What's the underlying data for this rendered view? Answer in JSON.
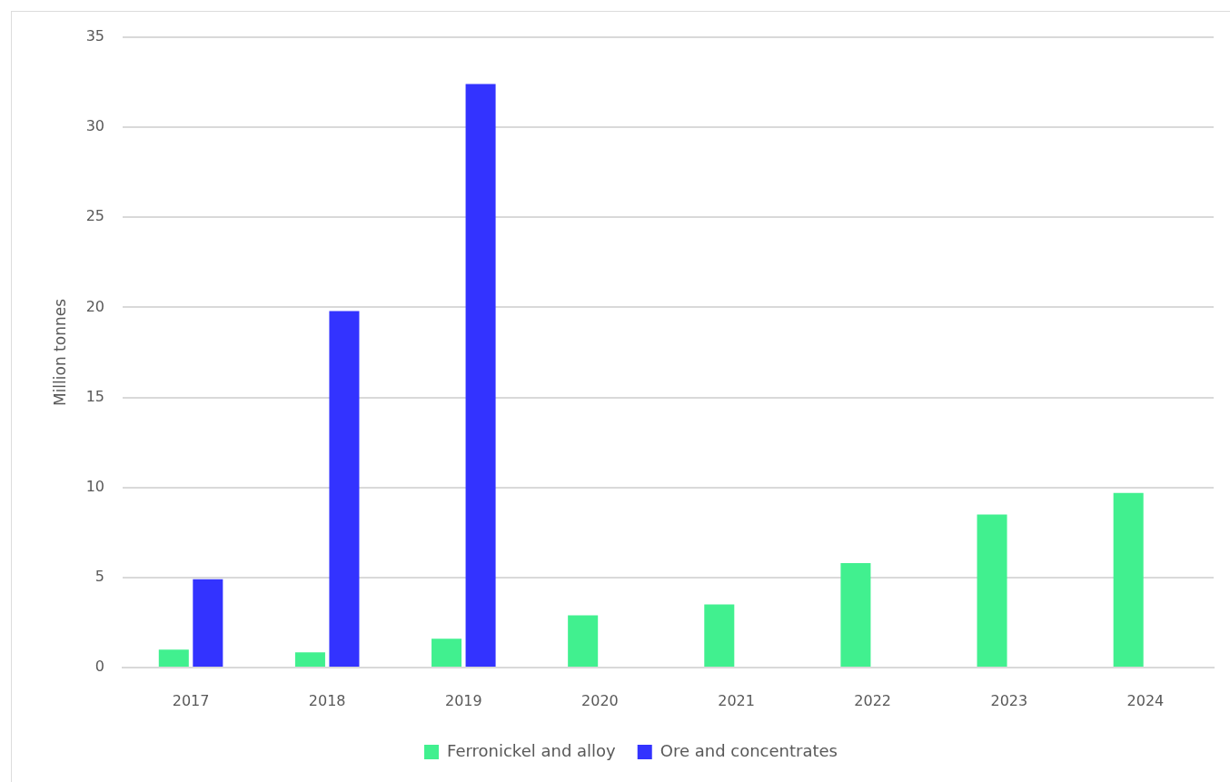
{
  "chart_data": {
    "type": "bar",
    "ylabel": "Million tonnes",
    "categories": [
      "2017",
      "2018",
      "2019",
      "2020",
      "2021",
      "2022",
      "2023",
      "2024"
    ],
    "series": [
      {
        "name": "Ferronickel and alloy",
        "color": "#41f08f",
        "values": [
          1.0,
          0.85,
          1.6,
          2.9,
          3.5,
          5.8,
          8.5,
          9.7
        ]
      },
      {
        "name": "Ore and concentrates",
        "color": "#3333ff",
        "values": [
          4.9,
          19.8,
          32.4,
          null,
          null,
          null,
          null,
          null
        ]
      }
    ],
    "ylim": [
      0,
      35
    ],
    "yticks": [
      0,
      5,
      10,
      15,
      20,
      25,
      30,
      35
    ],
    "grid": "y",
    "legend": "bottom"
  }
}
